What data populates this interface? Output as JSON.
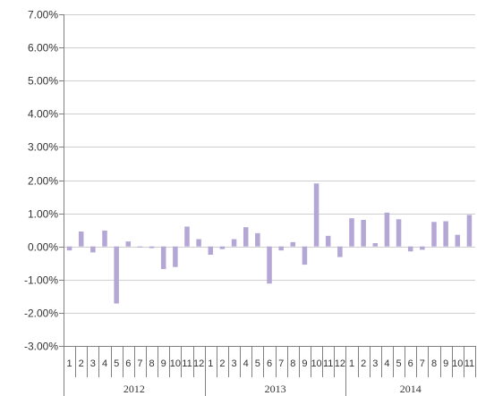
{
  "colors": {
    "bar": "#b4a7d6",
    "grid": "#cfcfcf",
    "axis": "#808080",
    "text": "#333333"
  },
  "chart_data": {
    "type": "bar",
    "title": "",
    "xlabel": "",
    "ylabel": "",
    "ylim": [
      -3.0,
      7.0
    ],
    "y_tick_values": [
      -3,
      -2,
      -1,
      0,
      1,
      2,
      3,
      4,
      5,
      6,
      7
    ],
    "y_tick_labels": [
      "-3.00%",
      "-2.00%",
      "-1.00%",
      "0.00%",
      "1.00%",
      "2.00%",
      "3.00%",
      "4.00%",
      "5.00%",
      "6.00%",
      "7.00%"
    ],
    "grid": true,
    "legend": "none",
    "groups": [
      {
        "label": "2012",
        "categories": [
          "1",
          "2",
          "3",
          "4",
          "5",
          "6",
          "7",
          "8",
          "9",
          "10",
          "11",
          "12"
        ],
        "values": [
          -0.12,
          0.45,
          -0.18,
          0.48,
          -1.72,
          0.15,
          -0.03,
          -0.05,
          -0.68,
          -0.62,
          0.6,
          0.22
        ]
      },
      {
        "label": "2013",
        "categories": [
          "1",
          "2",
          "3",
          "4",
          "5",
          "6",
          "7",
          "8",
          "9",
          "10",
          "11",
          "12"
        ],
        "values": [
          -0.25,
          -0.08,
          0.22,
          0.58,
          0.4,
          -1.12,
          -0.12,
          0.13,
          -0.55,
          1.9,
          0.32,
          -0.32
        ]
      },
      {
        "label": "2014",
        "categories": [
          "1",
          "2",
          "3",
          "4",
          "5",
          "6",
          "7",
          "8",
          "9",
          "10",
          "11"
        ],
        "values": [
          0.85,
          0.8,
          0.1,
          1.02,
          0.82,
          -0.15,
          -0.1,
          0.74,
          0.76,
          0.35,
          0.95
        ]
      }
    ]
  }
}
